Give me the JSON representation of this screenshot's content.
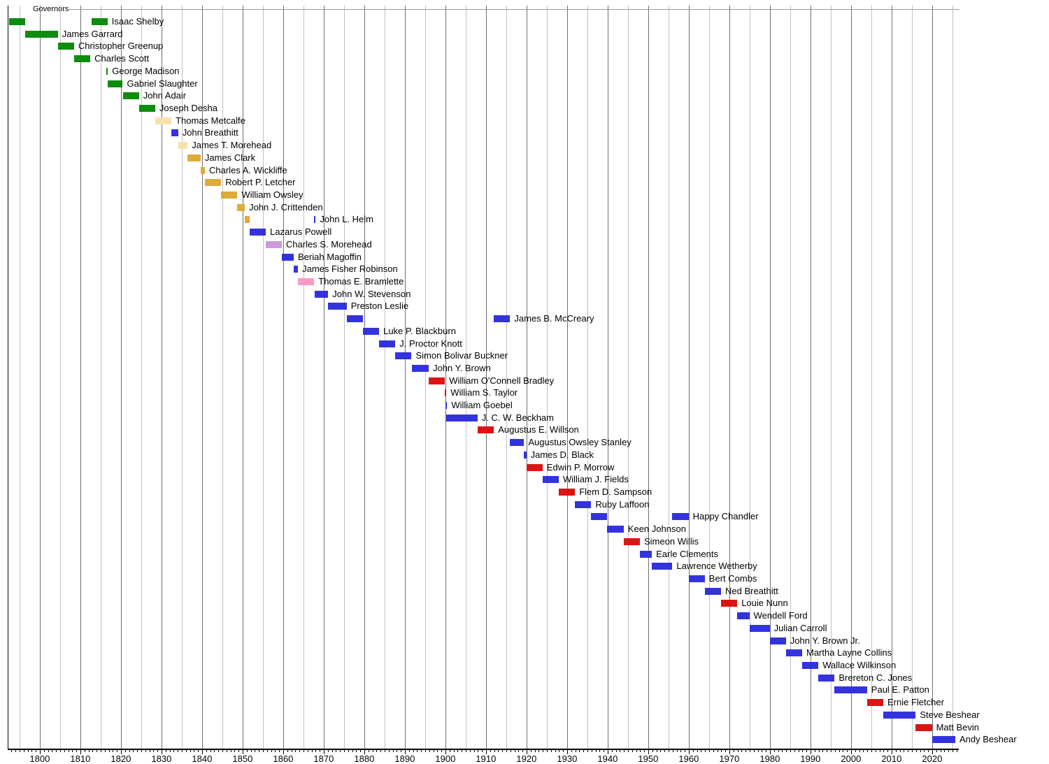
{
  "header": {
    "title": "Governors"
  },
  "chart_data": {
    "type": "bar",
    "variant": "gantt-timeline",
    "title": "Governors",
    "x_axis": {
      "min_year": 1792,
      "max_year": 2026.5,
      "minor_tick_interval": 1,
      "grid_interval_minor": 5,
      "grid_interval_major": 10,
      "label_ticks": [
        1800,
        1810,
        1820,
        1830,
        1840,
        1850,
        1860,
        1870,
        1880,
        1890,
        1900,
        1910,
        1920,
        1930,
        1940,
        1950,
        1960,
        1970,
        1980,
        1990,
        2000,
        2010,
        2020
      ]
    },
    "colors": {
      "democratic_republican": "#0e8c0e",
      "national_republican": "#f7e1ac",
      "whig": "#ddab3a",
      "democratic": "#3333dd",
      "know_nothing": "#cc99dd",
      "union_democrat": "#f999c4",
      "republican": "#dc1414",
      "grid_minor": "#c2c2c2",
      "grid_major": "#707070",
      "axis": "#000000",
      "header_line": "#999999",
      "text": "#000000"
    },
    "governors": [
      {
        "name": "Isaac Shelby",
        "party": "democratic_republican",
        "terms": [
          [
            1792.45,
            1796.45
          ],
          [
            1812.7,
            1816.7
          ]
        ]
      },
      {
        "name": "James Garrard",
        "party": "democratic_republican",
        "terms": [
          [
            1796.45,
            1804.45
          ]
        ]
      },
      {
        "name": "Christopher Greenup",
        "party": "democratic_republican",
        "terms": [
          [
            1804.45,
            1808.45
          ]
        ]
      },
      {
        "name": "Charles Scott",
        "party": "democratic_republican",
        "terms": [
          [
            1808.45,
            1812.45
          ]
        ]
      },
      {
        "name": "George Madison",
        "party": "democratic_republican",
        "terms": [
          [
            1816.45,
            1816.8
          ]
        ]
      },
      {
        "name": "Gabriel Slaughter",
        "party": "democratic_republican",
        "terms": [
          [
            1816.8,
            1820.45
          ]
        ]
      },
      {
        "name": "John Adair",
        "party": "democratic_republican",
        "terms": [
          [
            1820.45,
            1824.45
          ]
        ]
      },
      {
        "name": "Joseph Desha",
        "party": "democratic_republican",
        "terms": [
          [
            1824.45,
            1828.45
          ]
        ]
      },
      {
        "name": "Thomas Metcalfe",
        "party": "national_republican",
        "terms": [
          [
            1828.45,
            1832.45
          ]
        ]
      },
      {
        "name": "John Breathitt",
        "party": "democratic",
        "terms": [
          [
            1832.45,
            1834.1
          ]
        ]
      },
      {
        "name": "James T. Morehead",
        "party": "national_republican",
        "terms": [
          [
            1834.1,
            1836.45
          ]
        ]
      },
      {
        "name": "James Clark",
        "party": "whig",
        "terms": [
          [
            1836.45,
            1839.65
          ]
        ]
      },
      {
        "name": "Charles A. Wickliffe",
        "party": "whig",
        "terms": [
          [
            1839.65,
            1840.7
          ]
        ]
      },
      {
        "name": "Robert P. Letcher",
        "party": "whig",
        "terms": [
          [
            1840.7,
            1844.7
          ]
        ]
      },
      {
        "name": "William Owsley",
        "party": "whig",
        "terms": [
          [
            1844.7,
            1848.7
          ]
        ]
      },
      {
        "name": "John J. Crittenden",
        "party": "whig",
        "terms": [
          [
            1848.7,
            1850.55
          ]
        ]
      },
      {
        "name": "John L. Helm",
        "party": "whig",
        "terms": [
          [
            1850.55,
            1851.7
          ],
          [
            1867.67,
            1867.75
          ]
        ],
        "term_parties": [
          "whig",
          "democratic"
        ]
      },
      {
        "name": "Lazarus Powell",
        "party": "democratic",
        "terms": [
          [
            1851.7,
            1855.7
          ]
        ]
      },
      {
        "name": "Charles S. Morehead",
        "party": "know_nothing",
        "terms": [
          [
            1855.7,
            1859.65
          ]
        ]
      },
      {
        "name": "Beriah Magoffin",
        "party": "democratic",
        "terms": [
          [
            1859.65,
            1862.6
          ]
        ]
      },
      {
        "name": "James Fisher Robinson",
        "party": "democratic",
        "terms": [
          [
            1862.6,
            1863.65
          ]
        ]
      },
      {
        "name": "Thomas E. Bramlette",
        "party": "union_democrat",
        "terms": [
          [
            1863.65,
            1867.65
          ]
        ]
      },
      {
        "name": "John W. Stevenson",
        "party": "democratic",
        "terms": [
          [
            1867.7,
            1871.1
          ]
        ]
      },
      {
        "name": "Preston Leslie",
        "party": "democratic",
        "terms": [
          [
            1871.1,
            1875.65
          ]
        ]
      },
      {
        "name": "James B. McCreary",
        "party": "democratic",
        "terms": [
          [
            1875.65,
            1879.65
          ],
          [
            1911.95,
            1915.95
          ]
        ]
      },
      {
        "name": "Luke P. Blackburn",
        "party": "democratic",
        "terms": [
          [
            1879.65,
            1883.65
          ]
        ]
      },
      {
        "name": "J. Proctor Knott",
        "party": "democratic",
        "terms": [
          [
            1883.65,
            1887.65
          ]
        ]
      },
      {
        "name": "Simon Bolivar Buckner",
        "party": "democratic",
        "terms": [
          [
            1887.65,
            1891.65
          ]
        ]
      },
      {
        "name": "John Y. Brown",
        "party": "democratic",
        "terms": [
          [
            1891.65,
            1895.9
          ]
        ]
      },
      {
        "name": "William O'Connell Bradley",
        "party": "republican",
        "terms": [
          [
            1895.9,
            1899.9
          ]
        ]
      },
      {
        "name": "William S. Taylor",
        "party": "republican",
        "terms": [
          [
            1899.9,
            1900.1
          ]
        ]
      },
      {
        "name": "William Goebel",
        "party": "democratic",
        "terms": [
          [
            1900.08,
            1900.14
          ]
        ]
      },
      {
        "name": "J. C. W. Beckham",
        "party": "democratic",
        "terms": [
          [
            1900.1,
            1907.9
          ]
        ]
      },
      {
        "name": "Augustus E. Willson",
        "party": "republican",
        "terms": [
          [
            1907.9,
            1911.95
          ]
        ]
      },
      {
        "name": "Augustus Owsley Stanley",
        "party": "democratic",
        "terms": [
          [
            1915.95,
            1919.4
          ]
        ]
      },
      {
        "name": "James D. Black",
        "party": "democratic",
        "terms": [
          [
            1919.4,
            1919.95
          ]
        ]
      },
      {
        "name": "Edwin P. Morrow",
        "party": "republican",
        "terms": [
          [
            1919.95,
            1923.95
          ]
        ]
      },
      {
        "name": "William J. Fields",
        "party": "democratic",
        "terms": [
          [
            1923.95,
            1927.95
          ]
        ]
      },
      {
        "name": "Flem D. Sampson",
        "party": "republican",
        "terms": [
          [
            1927.95,
            1931.95
          ]
        ]
      },
      {
        "name": "Ruby Laffoon",
        "party": "democratic",
        "terms": [
          [
            1931.95,
            1935.95
          ]
        ]
      },
      {
        "name": "Happy Chandler",
        "party": "democratic",
        "terms": [
          [
            1935.95,
            1939.8
          ],
          [
            1955.95,
            1959.95
          ]
        ]
      },
      {
        "name": "Keen Johnson",
        "party": "democratic",
        "terms": [
          [
            1939.8,
            1943.95
          ]
        ]
      },
      {
        "name": "Simeon Willis",
        "party": "republican",
        "terms": [
          [
            1943.95,
            1947.95
          ]
        ]
      },
      {
        "name": "Earle Clements",
        "party": "democratic",
        "terms": [
          [
            1947.95,
            1950.9
          ]
        ]
      },
      {
        "name": "Lawrence Wetherby",
        "party": "democratic",
        "terms": [
          [
            1950.9,
            1955.95
          ]
        ]
      },
      {
        "name": "Bert Combs",
        "party": "democratic",
        "terms": [
          [
            1959.95,
            1963.95
          ]
        ]
      },
      {
        "name": "Ned Breathitt",
        "party": "democratic",
        "terms": [
          [
            1963.95,
            1967.95
          ]
        ]
      },
      {
        "name": "Louie Nunn",
        "party": "republican",
        "terms": [
          [
            1967.95,
            1971.95
          ]
        ]
      },
      {
        "name": "Wendell Ford",
        "party": "democratic",
        "terms": [
          [
            1971.95,
            1974.95
          ]
        ]
      },
      {
        "name": "Julian Carroll",
        "party": "democratic",
        "terms": [
          [
            1974.95,
            1979.95
          ]
        ]
      },
      {
        "name": "John Y. Brown Jr.",
        "party": "democratic",
        "terms": [
          [
            1979.95,
            1983.95
          ]
        ]
      },
      {
        "name": "Martha Layne Collins",
        "party": "democratic",
        "terms": [
          [
            1983.95,
            1987.95
          ]
        ]
      },
      {
        "name": "Wallace Wilkinson",
        "party": "democratic",
        "terms": [
          [
            1987.95,
            1991.95
          ]
        ]
      },
      {
        "name": "Brereton C. Jones",
        "party": "democratic",
        "terms": [
          [
            1991.95,
            1995.95
          ]
        ]
      },
      {
        "name": "Paul E. Patton",
        "party": "democratic",
        "terms": [
          [
            1995.95,
            2003.95
          ]
        ]
      },
      {
        "name": "Ernie Fletcher",
        "party": "republican",
        "terms": [
          [
            2003.95,
            2007.95
          ]
        ]
      },
      {
        "name": "Steve Beshear",
        "party": "democratic",
        "terms": [
          [
            2007.95,
            2015.95
          ]
        ]
      },
      {
        "name": "Matt Bevin",
        "party": "republican",
        "terms": [
          [
            2015.95,
            2019.95
          ]
        ]
      },
      {
        "name": "Andy Beshear",
        "party": "democratic",
        "terms": [
          [
            2019.95,
            2025.7
          ]
        ]
      }
    ]
  }
}
